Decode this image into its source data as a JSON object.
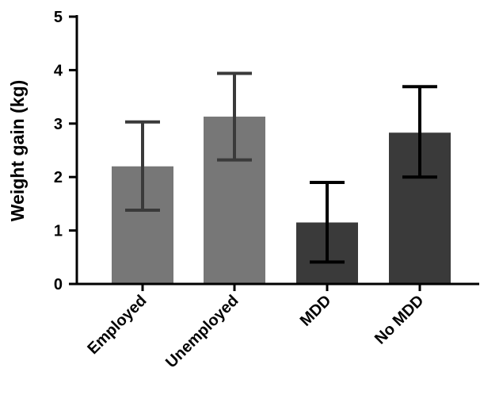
{
  "chart_data": {
    "type": "bar",
    "title": "",
    "xlabel": "",
    "ylabel": "Weight gain (kg)",
    "ylim": [
      0,
      5
    ],
    "yticks": [
      0,
      1,
      2,
      3,
      4,
      5
    ],
    "grid": false,
    "categories": [
      "Employed",
      "Unemployed",
      "MDD",
      "No MDD"
    ],
    "values": [
      2.2,
      3.13,
      1.15,
      2.83
    ],
    "error_low": [
      1.38,
      2.32,
      0.41,
      2.0
    ],
    "error_high": [
      3.03,
      3.94,
      1.9,
      3.69
    ],
    "bar_colors": [
      "#777777",
      "#777777",
      "#3a3a3a",
      "#3a3a3a"
    ],
    "error_colors": [
      "#3a3a3a",
      "#3a3a3a",
      "#000000",
      "#000000"
    ]
  }
}
